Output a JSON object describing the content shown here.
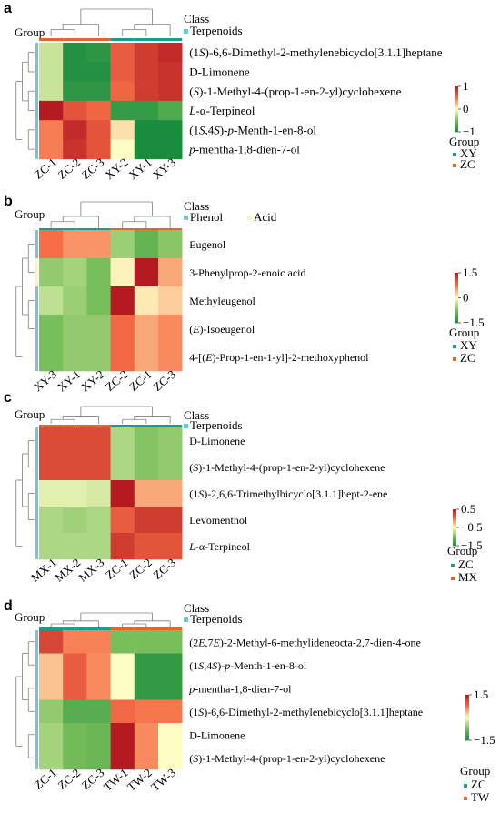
{
  "chart_data": [
    {
      "type": "heatmap",
      "panel_label": "a",
      "group_label": "Group",
      "class_label": "Class",
      "class_legend": [
        {
          "name": "Terpenoids",
          "color": "#73c6c9"
        }
      ],
      "columns": [
        "ZC-1",
        "ZC-2",
        "ZC-3",
        "XY-2",
        "XY-1",
        "XY-3"
      ],
      "column_groups": [
        "ZC",
        "ZC",
        "ZC",
        "XY",
        "XY",
        "XY"
      ],
      "rows": [
        {
          "label": "(1S)-6,6-Dimethyl-2-methylenebicyclo[3.1.1]heptane",
          "class": "Terpenoids",
          "values": [
            -0.2,
            -0.95,
            -0.9,
            0.6,
            0.8,
            0.9
          ]
        },
        {
          "label": "D-Limonene",
          "class": "Terpenoids",
          "values": [
            -0.2,
            -0.95,
            -0.95,
            0.6,
            0.8,
            0.85
          ]
        },
        {
          "label": "(S)-1-Methyl-4-(prop-1-en-2-yl)cyclohexene",
          "class": "Terpenoids",
          "values": [
            -0.2,
            -0.9,
            -0.9,
            0.55,
            0.8,
            0.85
          ]
        },
        {
          "label": "L-α-Terpineol",
          "class": "Terpenoids",
          "values": [
            1.0,
            0.65,
            0.55,
            -0.85,
            -0.85,
            -0.7
          ]
        },
        {
          "label": "(1S,4S)-p-Menth-1-en-8-ol",
          "class": "Terpenoids",
          "values": [
            0.45,
            0.9,
            0.65,
            0.1,
            -1.0,
            -1.0
          ]
        },
        {
          "label": "p-mentha-1,8-dien-7-ol",
          "class": "Terpenoids",
          "values": [
            0.45,
            0.85,
            0.65,
            0.0,
            -1.0,
            -1.0
          ]
        }
      ],
      "scale": {
        "min": -1,
        "max": 1,
        "ticks": [
          "1",
          "0",
          "−1"
        ]
      },
      "group_legend": [
        {
          "name": "XY",
          "color": "#1a9c8c"
        },
        {
          "name": "ZC",
          "color": "#e1662a"
        }
      ]
    },
    {
      "type": "heatmap",
      "panel_label": "b",
      "group_label": "Group",
      "class_label": "Class",
      "class_legend": [
        {
          "name": "Phenol",
          "color": "#73c6c9"
        },
        {
          "name": "Acid",
          "color": "#fdf3b2"
        }
      ],
      "columns": [
        "XY-3",
        "XY-1",
        "XY-2",
        "ZC-2",
        "ZC-1",
        "ZC-3"
      ],
      "column_groups": [
        "XY",
        "XY",
        "XY",
        "ZC",
        "ZC",
        "ZC"
      ],
      "rows": [
        {
          "label": "Eugenol",
          "class": "Phenol",
          "values": [
            0.75,
            0.55,
            0.55,
            -0.55,
            -0.9,
            -0.65
          ]
        },
        {
          "label": "3-Phenylprop-2-enoic acid",
          "class": "Acid",
          "values": [
            -0.6,
            -0.5,
            -0.75,
            0.05,
            1.5,
            0.45
          ]
        },
        {
          "label": "Methyleugenol",
          "class": "Phenol",
          "values": [
            -0.35,
            -0.55,
            -0.75,
            1.5,
            0.1,
            0.25
          ]
        },
        {
          "label": "(E)-Isoeugenol",
          "class": "Phenol",
          "values": [
            -0.75,
            -0.6,
            -0.6,
            0.8,
            0.45,
            0.6
          ]
        },
        {
          "label": "4-[(E)-Prop-1-en-1-yl]-2-methoxyphenol",
          "class": "Phenol",
          "values": [
            -0.75,
            -0.6,
            -0.6,
            0.8,
            0.45,
            0.6
          ]
        }
      ],
      "scale": {
        "min": -1.5,
        "max": 1.5,
        "ticks": [
          "1.5",
          "0",
          "−1.5"
        ]
      },
      "group_legend": [
        {
          "name": "XY",
          "color": "#1a9c8c"
        },
        {
          "name": "ZC",
          "color": "#e1662a"
        }
      ]
    },
    {
      "type": "heatmap",
      "panel_label": "c",
      "group_label": "Group",
      "class_label": "Class",
      "class_legend": [
        {
          "name": "Terpenoids",
          "color": "#73c6c9"
        }
      ],
      "columns": [
        "MX-1",
        "MX-2",
        "MX-3",
        "ZC-1",
        "ZC-2",
        "ZC-3"
      ],
      "column_groups": [
        "MX",
        "MX",
        "MX",
        "ZC",
        "ZC",
        "ZC"
      ],
      "rows": [
        {
          "label": "D-Limonene",
          "class": "Terpenoids",
          "values": [
            0.2,
            0.2,
            0.2,
            -0.8,
            -0.95,
            -0.9
          ]
        },
        {
          "label": "(S)-1-Methyl-4-(prop-1-en-2-yl)cyclohexene",
          "class": "Terpenoids",
          "values": [
            0.2,
            0.2,
            0.2,
            -0.8,
            -0.95,
            -0.9
          ]
        },
        {
          "label": "(1S)-2,6,6-Trimethylbicyclo[3.1.1]hept-2-ene",
          "class": "Terpenoids",
          "values": [
            -0.6,
            -0.6,
            -0.65,
            0.8,
            -0.2,
            -0.2
          ]
        },
        {
          "label": "Levomenthol",
          "class": "Terpenoids",
          "values": [
            -0.8,
            -0.85,
            -0.8,
            0.1,
            0.3,
            0.3
          ]
        },
        {
          "label": "L-α-Terpineol",
          "class": "Terpenoids",
          "values": [
            -0.8,
            -0.8,
            -0.8,
            0.3,
            0.15,
            0.15
          ]
        }
      ],
      "scale": {
        "min": -1.5,
        "max": 0.5,
        "ticks": [
          "0.5",
          "−0.5",
          "−1.5"
        ]
      },
      "group_legend": [
        {
          "name": "ZC",
          "color": "#1a9c8c"
        },
        {
          "name": "MX",
          "color": "#e1662a"
        }
      ]
    },
    {
      "type": "heatmap",
      "panel_label": "d",
      "group_label": "Group",
      "class_label": "Class",
      "class_legend": [
        {
          "name": "Terpenoids",
          "color": "#73c6c9"
        }
      ],
      "columns": [
        "ZC-1",
        "ZC-2",
        "ZC-3",
        "TW-1",
        "TW-2",
        "TW-3"
      ],
      "column_groups": [
        "ZC",
        "ZC",
        "ZC",
        "TW",
        "TW",
        "TW"
      ],
      "rows": [
        {
          "label": "(2E,7E)-2-Methyl-6-methylideneocta-2,7-dien-4-one",
          "class": "Terpenoids",
          "values": [
            1.1,
            0.65,
            0.65,
            -0.75,
            -0.75,
            -0.75
          ]
        },
        {
          "label": "(1S,4S)-p-Menth-1-en-8-ol",
          "class": "Terpenoids",
          "values": [
            0.3,
            0.9,
            0.6,
            0.0,
            -1.3,
            -1.3
          ]
        },
        {
          "label": "p-mentha-1,8-dien-7-ol",
          "class": "Terpenoids",
          "values": [
            0.3,
            0.9,
            0.6,
            0.0,
            -1.3,
            -1.3
          ]
        },
        {
          "label": "(1S)-6,6-Dimethyl-2-methylenebicyclo[3.1.1]heptane",
          "class": "Terpenoids",
          "values": [
            -0.6,
            -1.0,
            -1.0,
            0.8,
            0.7,
            0.7
          ]
        },
        {
          "label": "D-Limonene",
          "class": "Terpenoids",
          "values": [
            -0.5,
            -0.8,
            -0.85,
            1.5,
            0.6,
            0.0
          ]
        },
        {
          "label": "(S)-1-Methyl-4-(prop-1-en-2-yl)cyclohexene",
          "class": "Terpenoids",
          "values": [
            -0.5,
            -0.8,
            -0.85,
            1.5,
            0.6,
            0.0
          ]
        }
      ],
      "scale": {
        "min": -1.5,
        "max": 1.5,
        "ticks": [
          "1.5",
          "−1.5"
        ]
      },
      "group_legend": [
        {
          "name": "ZC",
          "color": "#1a9c8c"
        },
        {
          "name": "TW",
          "color": "#e1662a"
        }
      ]
    }
  ],
  "legend_title": "Group",
  "colors": {
    "low": "#1a8c3e",
    "mid": "#fdfcc4",
    "high": "#b51a22"
  }
}
